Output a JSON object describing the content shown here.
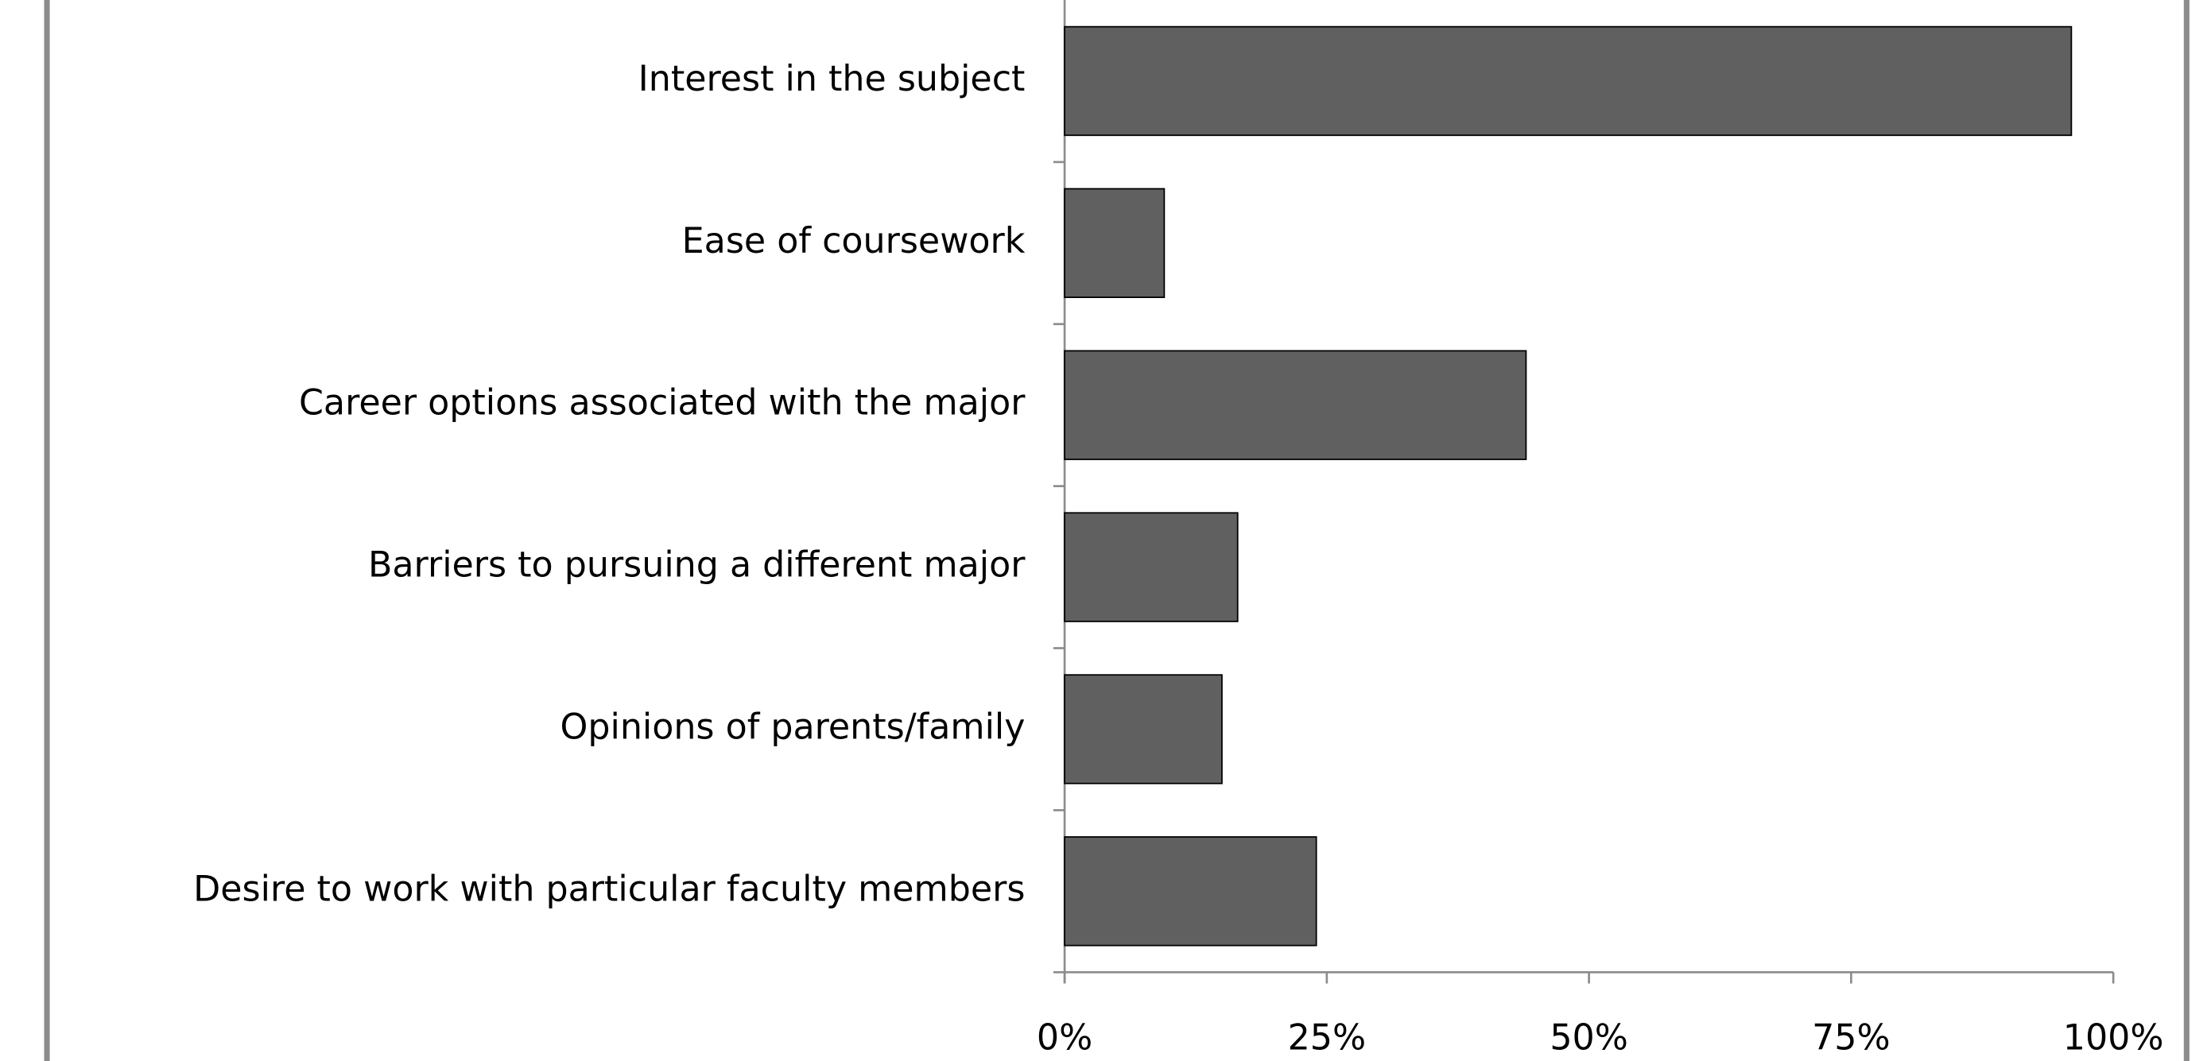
{
  "chart_data": {
    "type": "bar",
    "orientation": "horizontal",
    "categories": [
      "Interest in the subject",
      "Ease of coursework",
      "Career options associated with the major",
      "Barriers to pursuing a different major",
      "Opinions of parents/family",
      "Desire to work with particular faculty members"
    ],
    "values": [
      96,
      9.5,
      44,
      16.5,
      15,
      24
    ],
    "color": "#606060",
    "xlim": [
      0,
      100
    ],
    "xticks": [
      {
        "value": 0,
        "label": "0%"
      },
      {
        "value": 25,
        "label": "25%"
      },
      {
        "value": 50,
        "label": "50%"
      },
      {
        "value": 75,
        "label": "75%"
      },
      {
        "value": 100,
        "label": "100%"
      }
    ],
    "grid": false
  }
}
